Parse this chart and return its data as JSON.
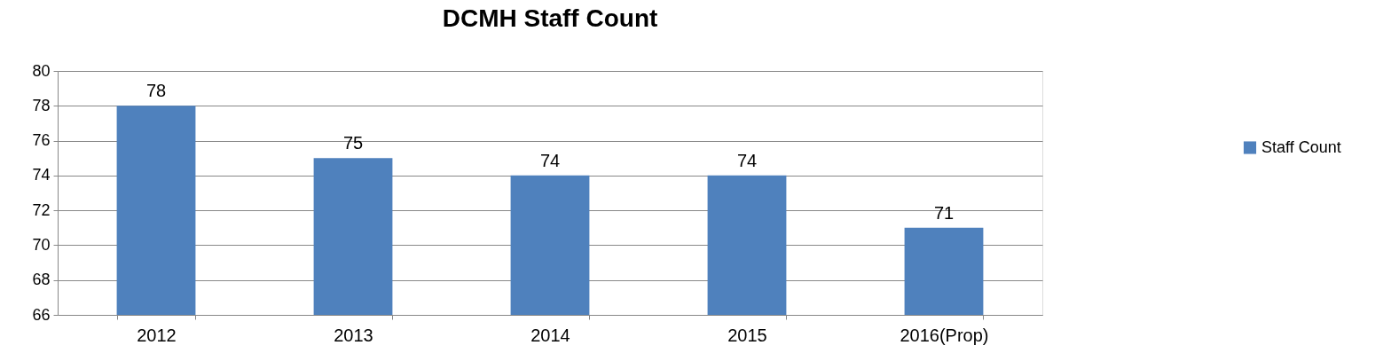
{
  "chart_data": {
    "type": "bar",
    "title": "DCMH Staff Count",
    "categories": [
      "2012",
      "2013",
      "2014",
      "2015",
      "2016(Prop)"
    ],
    "series": [
      {
        "name": "Staff Count",
        "color": "#4f81bd",
        "values": [
          78,
          75,
          74,
          74,
          71
        ]
      }
    ],
    "ylim": [
      66,
      80
    ],
    "yticks": [
      66,
      68,
      70,
      72,
      74,
      76,
      78,
      80
    ],
    "grid": "y",
    "legend": "right",
    "data_labels": true
  }
}
